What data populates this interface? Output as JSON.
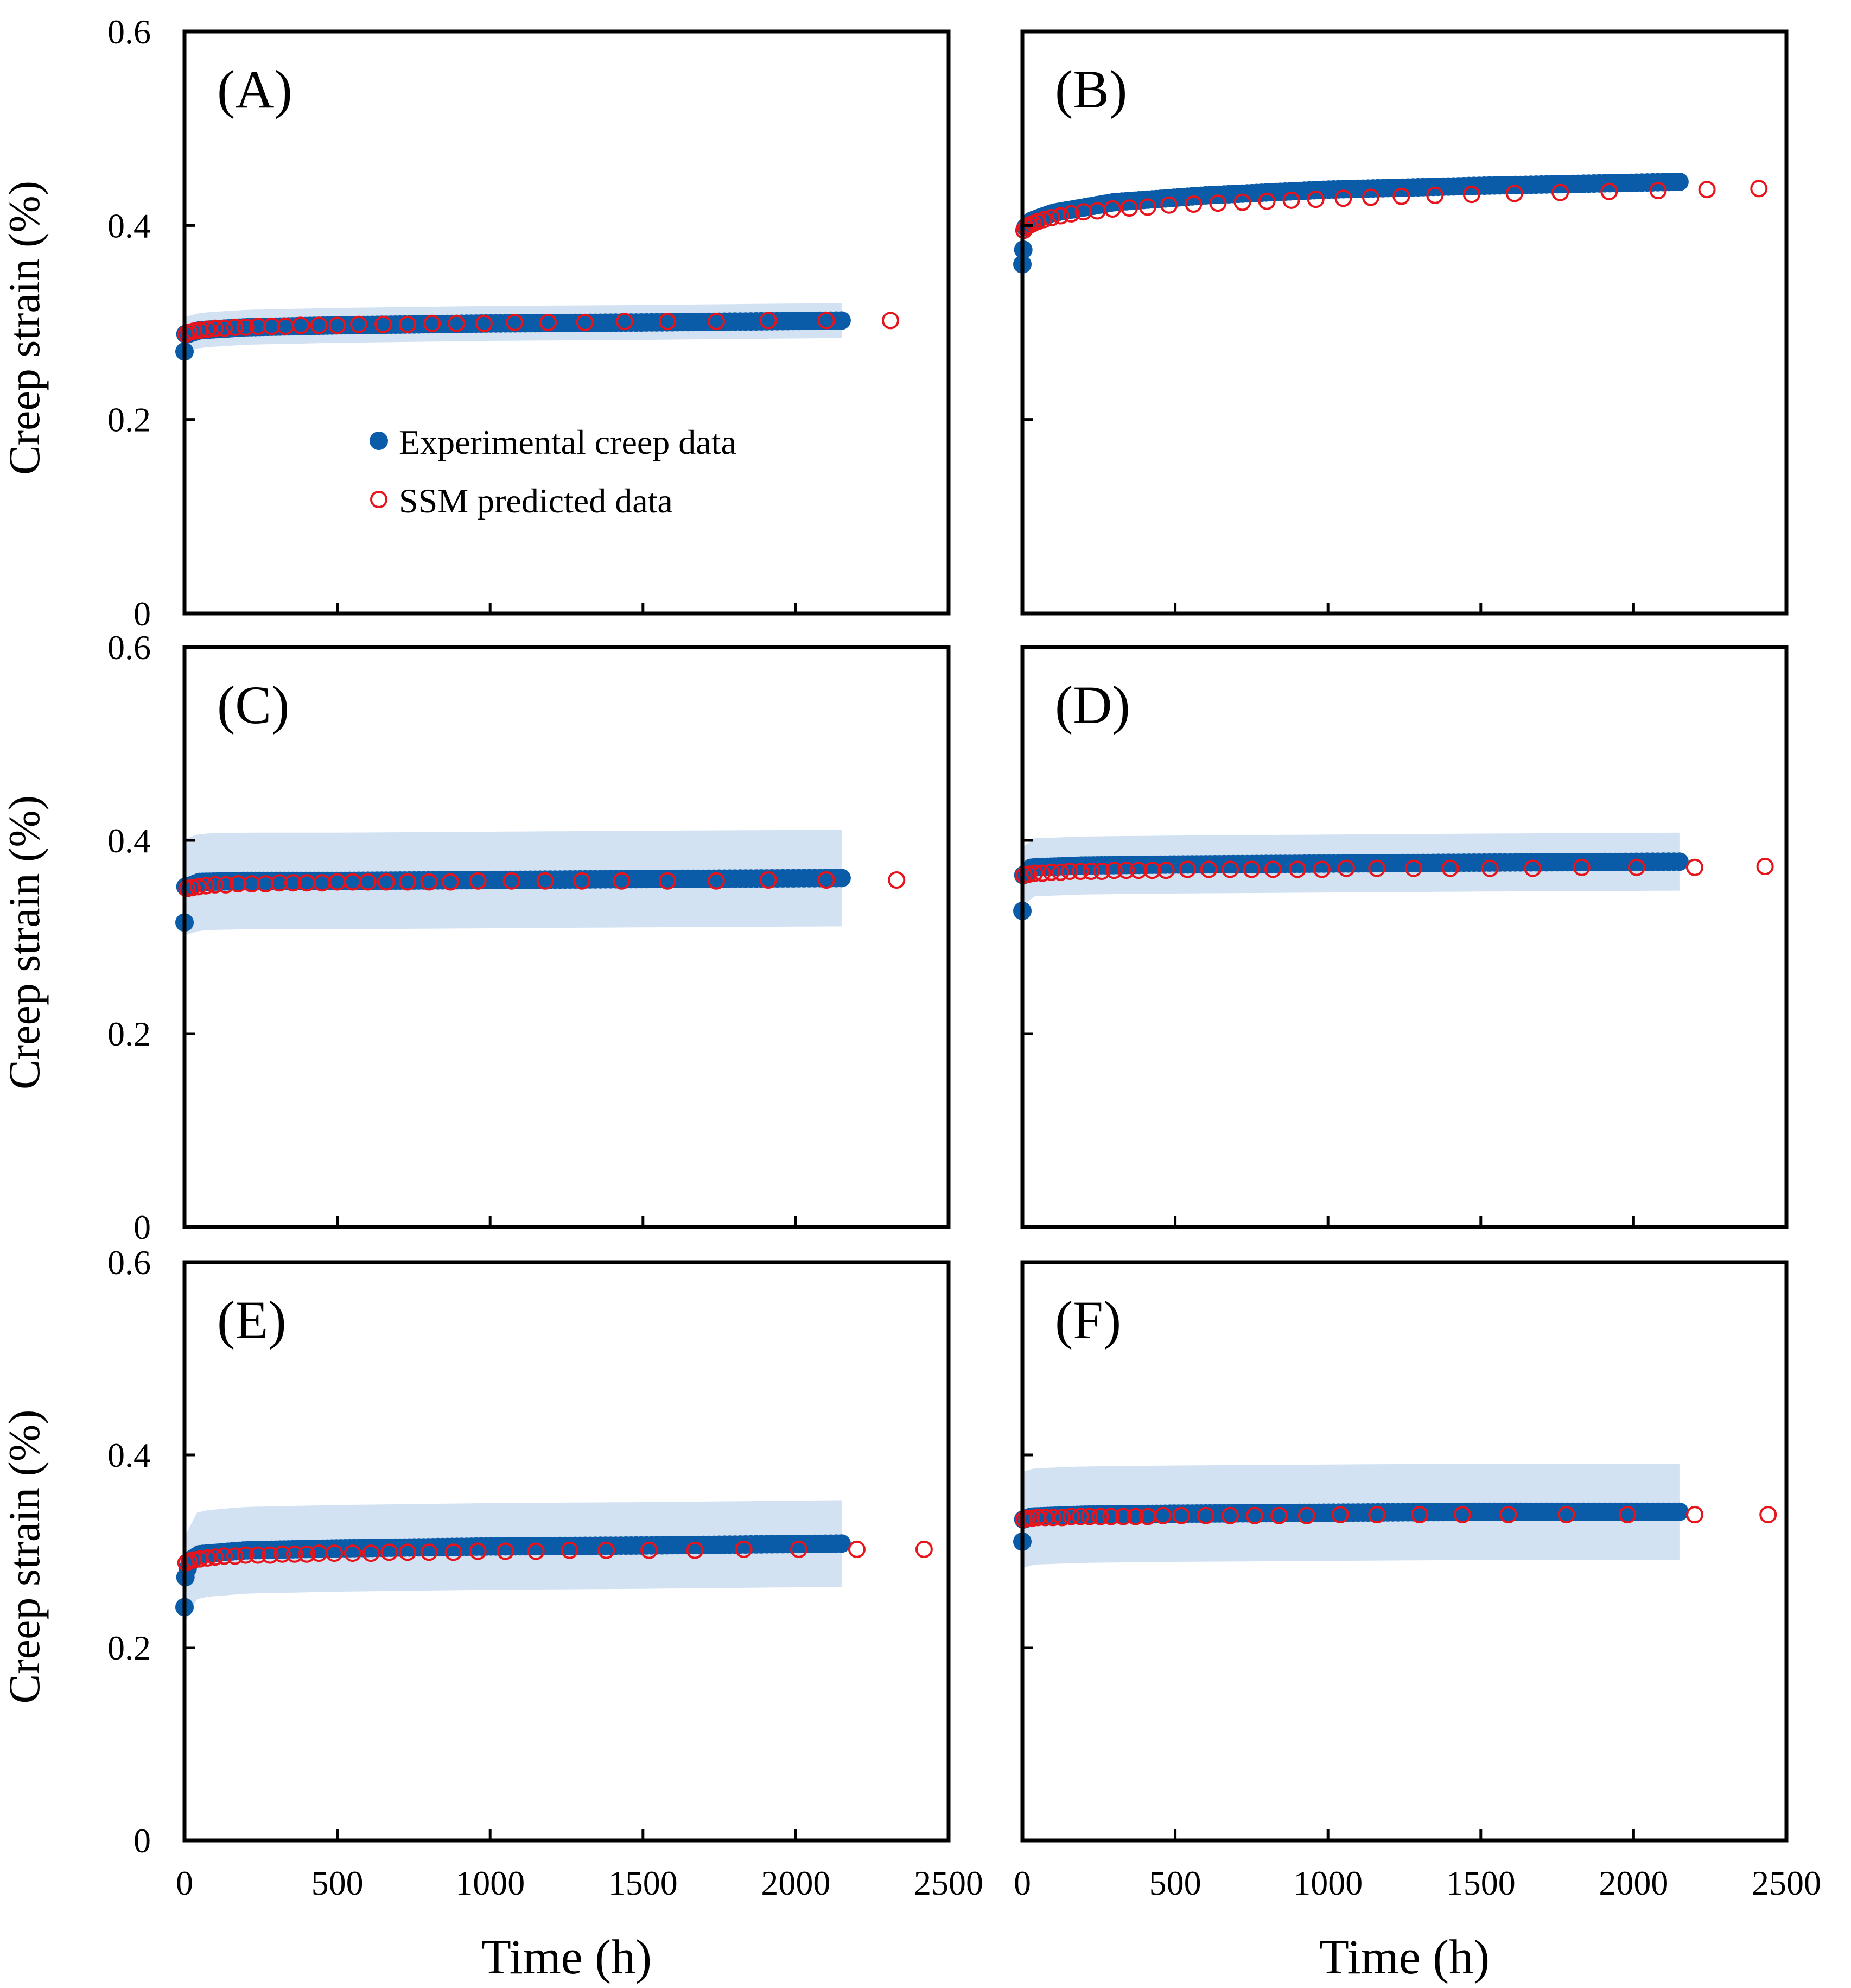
{
  "figure": {
    "series_names": [
      "Experimental creep data",
      "SSM predicted data"
    ],
    "colors": {
      "experimental": "#0a5ba8",
      "predicted": "#e8141b",
      "error_band": "#d3e2f2",
      "axis": "#000000"
    }
  },
  "axes_text": {
    "ylabel": "Creep strain (%)",
    "xlabel": "Time (h)",
    "y_ticks": [
      "0",
      "0.2",
      "0.4",
      "0.6"
    ],
    "x_ticks": [
      "0",
      "500",
      "1000",
      "1500",
      "2000",
      "2500"
    ]
  },
  "legend": {
    "experimental": "Experimental creep data",
    "predicted": "SSM predicted data"
  },
  "chart_data": [
    {
      "type": "scatter",
      "label": "(A)",
      "xlim": [
        0,
        2500
      ],
      "ylim": [
        0,
        0.6
      ],
      "grid": false,
      "legend": "center-left",
      "experimental": {
        "start": 0.27,
        "curve": [
          [
            10,
            0.288
          ],
          [
            50,
            0.292
          ],
          [
            200,
            0.295
          ],
          [
            500,
            0.297
          ],
          [
            1000,
            0.299
          ],
          [
            1500,
            0.3
          ],
          [
            2150,
            0.302
          ]
        ],
        "end_time": 2150,
        "band": 0.018
      },
      "predicted": {
        "x": [
          5,
          15,
          30,
          50,
          75,
          100,
          130,
          165,
          200,
          240,
          285,
          330,
          380,
          440,
          500,
          570,
          650,
          730,
          810,
          890,
          980,
          1080,
          1190,
          1310,
          1440,
          1580,
          1740,
          1910,
          2100,
          2310
        ],
        "y": [
          0.288,
          0.29,
          0.291,
          0.292,
          0.293,
          0.294,
          0.294,
          0.295,
          0.295,
          0.296,
          0.296,
          0.296,
          0.297,
          0.297,
          0.297,
          0.298,
          0.298,
          0.298,
          0.299,
          0.299,
          0.299,
          0.3,
          0.3,
          0.3,
          0.301,
          0.301,
          0.301,
          0.302,
          0.302,
          0.302
        ]
      }
    },
    {
      "type": "scatter",
      "label": "(B)",
      "xlim": [
        0,
        2500
      ],
      "ylim": [
        0,
        0.6
      ],
      "grid": false,
      "experimental": {
        "start": 0.36,
        "curve": [
          [
            5,
            0.375
          ],
          [
            10,
            0.398
          ],
          [
            30,
            0.405
          ],
          [
            100,
            0.413
          ],
          [
            300,
            0.424
          ],
          [
            600,
            0.431
          ],
          [
            1000,
            0.437
          ],
          [
            1500,
            0.441
          ],
          [
            2150,
            0.445
          ]
        ],
        "end_time": 2150,
        "band": 0.0
      },
      "predicted": {
        "x": [
          5,
          12,
          22,
          35,
          50,
          70,
          95,
          125,
          160,
          200,
          245,
          295,
          350,
          410,
          480,
          560,
          640,
          720,
          800,
          880,
          960,
          1050,
          1140,
          1240,
          1350,
          1470,
          1610,
          1760,
          1920,
          2080,
          2240,
          2410
        ],
        "y": [
          0.395,
          0.398,
          0.4,
          0.402,
          0.404,
          0.406,
          0.408,
          0.41,
          0.412,
          0.414,
          0.415,
          0.417,
          0.418,
          0.419,
          0.421,
          0.422,
          0.423,
          0.424,
          0.425,
          0.426,
          0.427,
          0.428,
          0.429,
          0.43,
          0.431,
          0.432,
          0.433,
          0.434,
          0.435,
          0.436,
          0.437,
          0.438
        ]
      }
    },
    {
      "type": "scatter",
      "label": "(C)",
      "xlim": [
        0,
        2500
      ],
      "ylim": [
        0,
        0.6
      ],
      "grid": false,
      "experimental": {
        "start": 0.315,
        "curve": [
          [
            10,
            0.352
          ],
          [
            50,
            0.357
          ],
          [
            200,
            0.358
          ],
          [
            500,
            0.358
          ],
          [
            1000,
            0.359
          ],
          [
            1500,
            0.36
          ],
          [
            2150,
            0.361
          ]
        ],
        "end_time": 2150,
        "band": 0.05
      },
      "predicted": {
        "x": [
          8,
          25,
          45,
          70,
          100,
          135,
          175,
          220,
          265,
          310,
          355,
          400,
          450,
          500,
          550,
          600,
          660,
          730,
          800,
          870,
          960,
          1070,
          1180,
          1300,
          1430,
          1580,
          1740,
          1910,
          2100,
          2330
        ],
        "y": [
          0.35,
          0.351,
          0.352,
          0.353,
          0.354,
          0.354,
          0.355,
          0.355,
          0.355,
          0.356,
          0.356,
          0.356,
          0.356,
          0.357,
          0.357,
          0.357,
          0.357,
          0.357,
          0.357,
          0.357,
          0.358,
          0.358,
          0.358,
          0.358,
          0.358,
          0.358,
          0.358,
          0.359,
          0.359,
          0.359
        ]
      }
    },
    {
      "type": "scatter",
      "label": "(D)",
      "xlim": [
        0,
        2500
      ],
      "ylim": [
        0,
        0.6
      ],
      "grid": false,
      "experimental": {
        "start": 0.327,
        "curve": [
          [
            5,
            0.364
          ],
          [
            30,
            0.372
          ],
          [
            200,
            0.374
          ],
          [
            500,
            0.375
          ],
          [
            1000,
            0.376
          ],
          [
            1500,
            0.377
          ],
          [
            2150,
            0.378
          ]
        ],
        "end_time": 2150,
        "band": 0.03
      },
      "predicted": {
        "x": [
          5,
          20,
          40,
          65,
          95,
          125,
          155,
          190,
          225,
          260,
          300,
          340,
          380,
          425,
          470,
          540,
          610,
          680,
          750,
          820,
          900,
          980,
          1060,
          1160,
          1280,
          1400,
          1530,
          1670,
          1830,
          2010,
          2200,
          2430
        ],
        "y": [
          0.364,
          0.365,
          0.366,
          0.366,
          0.367,
          0.367,
          0.368,
          0.368,
          0.368,
          0.368,
          0.369,
          0.369,
          0.369,
          0.369,
          0.369,
          0.37,
          0.37,
          0.37,
          0.37,
          0.37,
          0.37,
          0.37,
          0.371,
          0.371,
          0.371,
          0.371,
          0.371,
          0.371,
          0.372,
          0.372,
          0.372,
          0.373
        ]
      }
    },
    {
      "type": "scatter",
      "label": "(E)",
      "xlim": [
        0,
        2500
      ],
      "ylim": [
        0,
        0.6
      ],
      "grid": false,
      "experimental": {
        "start": 0.242,
        "curve": [
          [
            5,
            0.273
          ],
          [
            15,
            0.29
          ],
          [
            50,
            0.297
          ],
          [
            200,
            0.301
          ],
          [
            500,
            0.303
          ],
          [
            1000,
            0.305
          ],
          [
            1500,
            0.306
          ],
          [
            2150,
            0.308
          ]
        ],
        "end_time": 2150,
        "band": 0.045
      },
      "predicted": {
        "x": [
          5,
          15,
          30,
          50,
          75,
          100,
          130,
          165,
          200,
          240,
          280,
          320,
          360,
          400,
          440,
          490,
          550,
          610,
          670,
          730,
          800,
          880,
          960,
          1050,
          1150,
          1260,
          1380,
          1520,
          1670,
          1830,
          2010,
          2200,
          2420
        ],
        "y": [
          0.288,
          0.29,
          0.291,
          0.292,
          0.293,
          0.294,
          0.295,
          0.295,
          0.296,
          0.296,
          0.296,
          0.297,
          0.297,
          0.297,
          0.298,
          0.298,
          0.298,
          0.298,
          0.299,
          0.299,
          0.299,
          0.299,
          0.3,
          0.3,
          0.3,
          0.301,
          0.301,
          0.301,
          0.301,
          0.302,
          0.302,
          0.302,
          0.302
        ]
      }
    },
    {
      "type": "scatter",
      "label": "(F)",
      "xlim": [
        0,
        2500
      ],
      "ylim": [
        0,
        0.6
      ],
      "grid": false,
      "experimental": {
        "start": 0.31,
        "curve": [
          [
            5,
            0.333
          ],
          [
            30,
            0.336
          ],
          [
            200,
            0.338
          ],
          [
            500,
            0.339
          ],
          [
            1000,
            0.34
          ],
          [
            1500,
            0.341
          ],
          [
            2150,
            0.341
          ]
        ],
        "end_time": 2150,
        "band": 0.05
      },
      "predicted": {
        "x": [
          5,
          15,
          30,
          50,
          75,
          100,
          130,
          160,
          190,
          220,
          255,
          290,
          330,
          370,
          410,
          460,
          520,
          600,
          680,
          760,
          840,
          930,
          1040,
          1160,
          1300,
          1440,
          1590,
          1780,
          1980,
          2200,
          2440
        ],
        "y": [
          0.333,
          0.334,
          0.334,
          0.335,
          0.335,
          0.335,
          0.335,
          0.336,
          0.336,
          0.336,
          0.336,
          0.336,
          0.336,
          0.336,
          0.336,
          0.337,
          0.337,
          0.337,
          0.337,
          0.337,
          0.337,
          0.337,
          0.338,
          0.338,
          0.338,
          0.338,
          0.338,
          0.338,
          0.338,
          0.338,
          0.338
        ]
      }
    }
  ]
}
